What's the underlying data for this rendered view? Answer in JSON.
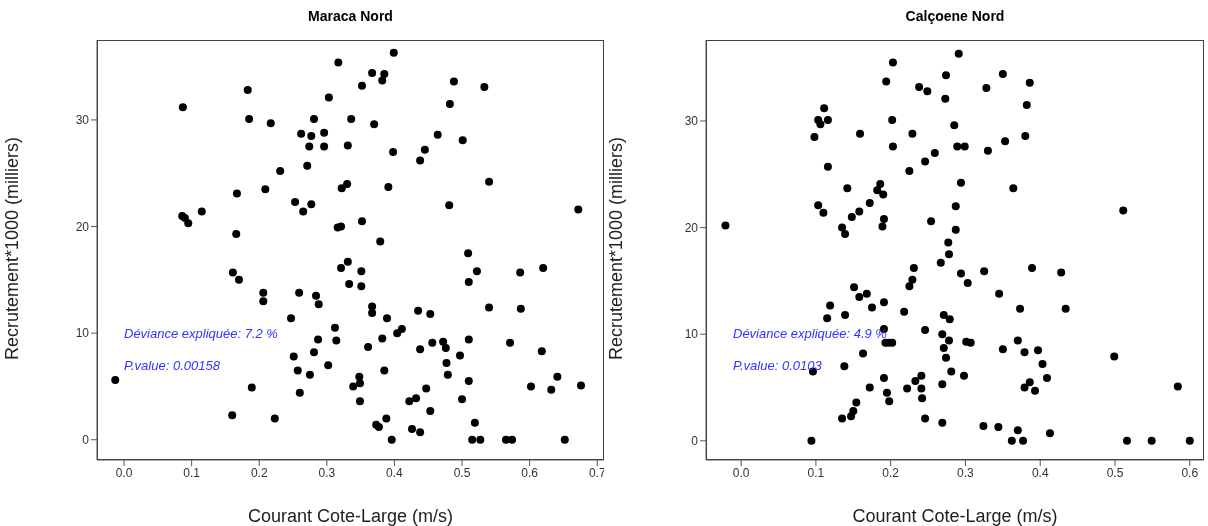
{
  "chart_data": [
    {
      "type": "scatter",
      "title": "Maraca Nord",
      "xlabel": "Courant Cote-Large (m/s)",
      "ylabel": "Recrutement*1000 (milliers)",
      "color": "#000000",
      "marker": "circle",
      "x": [
        -0.013,
        0.087,
        0.086,
        0.09,
        0.095,
        0.115,
        0.183,
        0.185,
        0.217,
        0.231,
        0.209,
        0.167,
        0.166,
        0.161,
        0.17,
        0.206,
        0.206,
        0.259,
        0.284,
        0.288,
        0.247,
        0.312,
        0.314,
        0.287,
        0.281,
        0.251,
        0.302,
        0.257,
        0.275,
        0.189,
        0.26,
        0.16,
        0.223,
        0.253,
        0.277,
        0.265,
        0.271,
        0.262,
        0.277,
        0.296,
        0.274,
        0.296,
        0.281,
        0.303,
        0.317,
        0.331,
        0.336,
        0.322,
        0.33,
        0.316,
        0.321,
        0.331,
        0.321,
        0.333,
        0.339,
        0.399,
        0.367,
        0.385,
        0.382,
        0.352,
        0.488,
        0.533,
        0.482,
        0.37,
        0.464,
        0.501,
        0.398,
        0.445,
        0.438,
        0.54,
        0.391,
        0.481,
        0.672,
        0.352,
        0.379,
        0.509,
        0.351,
        0.522,
        0.51,
        0.586,
        0.62,
        0.351,
        0.367,
        0.367,
        0.389,
        0.435,
        0.453,
        0.54,
        0.587,
        0.404,
        0.411,
        0.382,
        0.361,
        0.438,
        0.456,
        0.472,
        0.476,
        0.51,
        0.571,
        0.618,
        0.497,
        0.477,
        0.385,
        0.479,
        0.51,
        0.348,
        0.349,
        0.447,
        0.602,
        0.632,
        0.641,
        0.676,
        0.349,
        0.432,
        0.422,
        0.5,
        0.453,
        0.519,
        0.373,
        0.377,
        0.388,
        0.426,
        0.438,
        0.396,
        0.515,
        0.527,
        0.565,
        0.574,
        0.652
      ],
      "values": [
        5.6,
        31.2,
        21.0,
        20.8,
        20.3,
        21.4,
        32.8,
        30.1,
        29.7,
        25.2,
        23.5,
        23.1,
        19.3,
        15.7,
        15.0,
        13.8,
        13.0,
        13.8,
        13.5,
        12.7,
        11.4,
        10.5,
        9.3,
        9.4,
        8.2,
        7.8,
        7.0,
        6.5,
        6.1,
        4.9,
        4.4,
        2.3,
        2.0,
        22.3,
        22.1,
        21.4,
        25.7,
        28.7,
        28.5,
        28.8,
        27.5,
        27.5,
        30.1,
        32.1,
        35.4,
        27.6,
        30.1,
        23.6,
        24.0,
        19.9,
        20.0,
        16.7,
        16.1,
        14.6,
        5.0,
        36.3,
        34.4,
        34.3,
        33.7,
        33.2,
        33.6,
        33.1,
        31.5,
        29.6,
        28.6,
        28.1,
        27.0,
        27.2,
        26.2,
        24.2,
        23.7,
        22.0,
        21.6,
        20.5,
        18.6,
        17.5,
        15.8,
        15.8,
        14.8,
        15.7,
        16.1,
        14.4,
        12.5,
        11.9,
        11.4,
        12.1,
        11.8,
        12.4,
        12.3,
        10.0,
        10.4,
        9.5,
        8.7,
        8.5,
        9.1,
        9.2,
        8.6,
        9.4,
        9.1,
        8.3,
        7.9,
        7.2,
        6.5,
        6.1,
        5.5,
        5.9,
        5.3,
        4.8,
        5.0,
        4.7,
        5.9,
        5.1,
        3.6,
        3.9,
        3.6,
        3.8,
        2.7,
        1.6,
        1.4,
        1.2,
        2.0,
        1.0,
        0.7,
        0,
        0,
        0,
        0,
        0,
        0
      ],
      "xlim": [
        -0.04,
        0.71
      ],
      "ylim": [
        -1.9,
        37.5
      ],
      "xticks": [
        {
          "value": 0,
          "label": "0.0"
        },
        0.1,
        0.2,
        0.3,
        0.4,
        0.5,
        0.6,
        0.7
      ],
      "yticks": [
        0,
        10,
        20,
        30
      ],
      "annotations": [
        "Déviance expliquée:  7.2 %",
        "P.value:  0.00158"
      ]
    },
    {
      "type": "scatter",
      "title": "Calçoene Nord",
      "xlabel": "Courant Cote-Large (m/s)",
      "ylabel": "Recrutement*1000 (milliers)",
      "color": "#000000",
      "marker": "circle",
      "x": [
        -0.021,
        0.094,
        0.096,
        0.138,
        0.135,
        0.147,
        0.15,
        0.154,
        0.163,
        0.172,
        0.191,
        0.195,
        0.198,
        0.193,
        0.197,
        0.202,
        0.191,
        0.222,
        0.233,
        0.241,
        0.241,
        0.242,
        0.246,
        0.269,
        0.269,
        0.281,
        0.274,
        0.271,
        0.278,
        0.269,
        0.246,
        0.271,
        0.279,
        0.218,
        0.191,
        0.175,
        0.168,
        0.158,
        0.151,
        0.139,
        0.119,
        0.115,
        0.231,
        0.229,
        0.225,
        0.267,
        0.278,
        0.277,
        0.294,
        0.254,
        0.287,
        0.287,
        0.294,
        0.189,
        0.191,
        0.135,
        0.139,
        0.148,
        0.158,
        0.172,
        0.103,
        0.11,
        0.142,
        0.182,
        0.186,
        0.19,
        0.225,
        0.246,
        0.259,
        0.289,
        0.116,
        0.098,
        0.103,
        0.106,
        0.116,
        0.111,
        0.159,
        0.203,
        0.202,
        0.229,
        0.285,
        0.194,
        0.203,
        0.238,
        0.249,
        0.273,
        0.274,
        0.291,
        0.35,
        0.328,
        0.386,
        0.382,
        0.38,
        0.353,
        0.33,
        0.299,
        0.364,
        0.511,
        0.303,
        0.325,
        0.389,
        0.428,
        0.345,
        0.373,
        0.434,
        0.301,
        0.307,
        0.35,
        0.37,
        0.379,
        0.397,
        0.403,
        0.409,
        0.386,
        0.379,
        0.393,
        0.298,
        0.499,
        0.584,
        0.324,
        0.344,
        0.37,
        0.362,
        0.377,
        0.413,
        0.516,
        0.549,
        0.6
      ],
      "values": [
        20.2,
        0,
        6.5,
        7.0,
        2.1,
        2.3,
        2.8,
        3.6,
        8.2,
        5.0,
        5.9,
        4.5,
        3.7,
        9.2,
        9.2,
        9.2,
        10.5,
        4.9,
        5.6,
        6.1,
        4.9,
        4.0,
        2.1,
        1.7,
        5.3,
        6.5,
        7.8,
        8.7,
        9.4,
        10.0,
        10.4,
        11.8,
        11.4,
        12.1,
        13.0,
        12.5,
        13.8,
        13.5,
        14.4,
        11.8,
        12.7,
        11.5,
        16.2,
        15.1,
        14.5,
        16.7,
        17.5,
        18.6,
        15.7,
        20.6,
        19.8,
        22.0,
        24.2,
        20.1,
        20.8,
        20.0,
        19.4,
        21.0,
        21.5,
        22.3,
        22.1,
        21.4,
        23.7,
        23.5,
        24.1,
        23.1,
        25.3,
        26.2,
        27.0,
        27.6,
        25.7,
        28.5,
        30.1,
        29.7,
        30.1,
        31.2,
        28.8,
        27.6,
        30.1,
        28.8,
        29.6,
        33.7,
        35.5,
        33.2,
        32.8,
        32.1,
        34.3,
        36.3,
        34.4,
        33.1,
        33.6,
        31.5,
        28.6,
        28.1,
        27.2,
        27.6,
        23.7,
        21.6,
        14.8,
        15.9,
        16.2,
        15.8,
        13.8,
        12.4,
        12.4,
        9.3,
        9.2,
        8.6,
        9.4,
        8.3,
        8.5,
        7.2,
        5.9,
        5.5,
        5.0,
        4.7,
        6.1,
        7.9,
        5.1,
        1.4,
        1.3,
        1.0,
        0,
        0,
        0.7,
        0,
        0,
        0
      ],
      "xlim": [
        -0.047,
        0.619
      ],
      "ylim": [
        -1.8,
        37.6
      ],
      "xticks": [
        {
          "value": 0,
          "label": "0.0"
        },
        0.1,
        0.2,
        0.3,
        0.4,
        0.5,
        0.6
      ],
      "yticks": [
        0,
        10,
        20,
        30
      ],
      "annotations": [
        "Déviance expliquée:  4.9 %",
        "P.value:  0.0103"
      ]
    }
  ]
}
